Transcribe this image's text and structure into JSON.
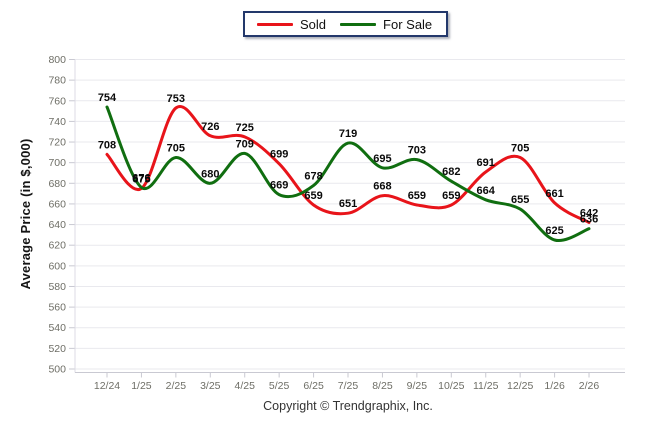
{
  "legend": {
    "sold_label": "Sold",
    "for_sale_label": "For Sale"
  },
  "footer": {
    "copyright": "Copyright © Trendgraphix, Inc."
  },
  "colors": {
    "sold": "#e8141a",
    "for_sale": "#106e10",
    "grid": "#e9e9ee",
    "axis": "#c9c9d2",
    "tick_text": "#6e6e66",
    "data_label": "#0a0a0a",
    "legend_border": "#23386b"
  },
  "chart_data": {
    "type": "line",
    "title": "",
    "xlabel": "",
    "ylabel": "Average Price (in $,000)",
    "ylim": [
      500,
      800
    ],
    "ytick_step": 20,
    "grid": true,
    "legend_position": "top",
    "line_style": "smooth-spline",
    "categories": [
      "12/24",
      "1/25",
      "2/25",
      "3/25",
      "4/25",
      "5/25",
      "6/25",
      "7/25",
      "8/25",
      "9/25",
      "10/25",
      "11/25",
      "12/25",
      "1/26",
      "2/26"
    ],
    "series": [
      {
        "name": "Sold",
        "color": "#e8141a",
        "values": [
          708,
          675,
          753,
          726,
          725,
          699,
          659,
          651,
          668,
          659,
          659,
          691,
          705,
          661,
          642
        ]
      },
      {
        "name": "For Sale",
        "color": "#106e10",
        "values": [
          754,
          676,
          705,
          680,
          709,
          669,
          678,
          719,
          695,
          703,
          682,
          664,
          655,
          625,
          636
        ]
      }
    ]
  }
}
